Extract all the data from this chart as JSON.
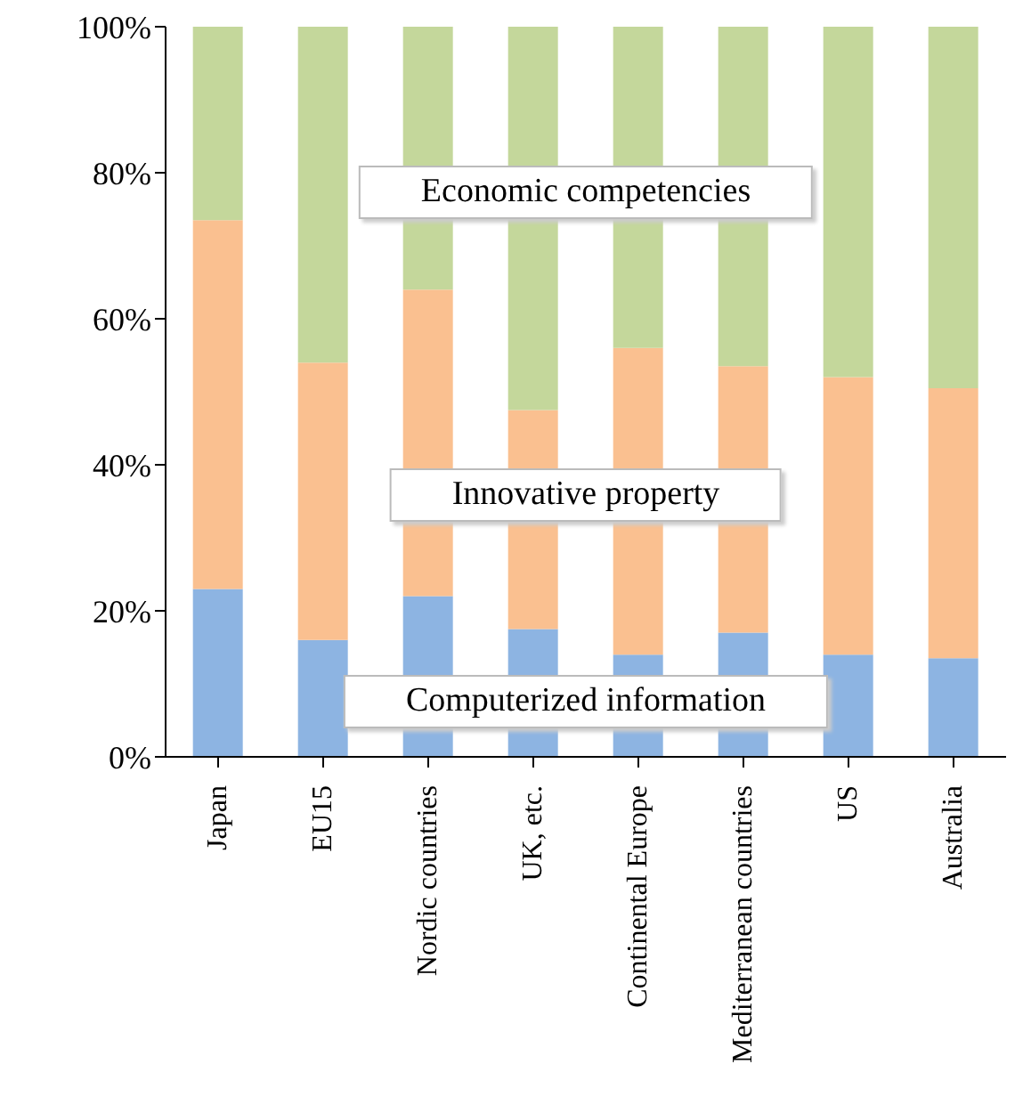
{
  "chart_data": {
    "type": "bar",
    "stacked": true,
    "legend": false,
    "grid": false,
    "categories": [
      "Japan",
      "EU15",
      "Nordic countries",
      "UK, etc.",
      "Continental Europe",
      "Mediterranean countries",
      "US",
      "Australia"
    ],
    "series": [
      {
        "name": "Computerized information",
        "color": "#8db4e2",
        "values": [
          23,
          16,
          22,
          17.5,
          14,
          17,
          14,
          13.5
        ]
      },
      {
        "name": "Innovative property",
        "color": "#fac090",
        "values": [
          50.5,
          38,
          42,
          30,
          42,
          36.5,
          38,
          37
        ]
      },
      {
        "name": "Economic competencies",
        "color": "#c4d79b",
        "values": [
          26.5,
          46,
          36,
          52.5,
          44,
          46.5,
          48,
          49.5
        ]
      }
    ],
    "ylim": [
      0,
      100
    ],
    "yticks": [
      {
        "value": 0,
        "label": "0%"
      },
      {
        "value": 20,
        "label": "20%"
      },
      {
        "value": 40,
        "label": "40%"
      },
      {
        "value": 60,
        "label": "60%"
      },
      {
        "value": 80,
        "label": "80%"
      },
      {
        "value": 100,
        "label": "100%"
      }
    ]
  }
}
